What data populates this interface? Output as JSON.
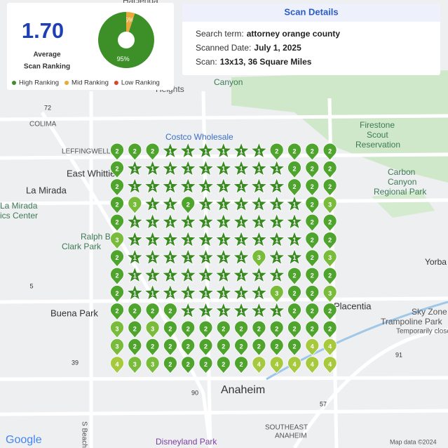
{
  "summary": {
    "average": "1.70",
    "average_label": [
      "Average",
      "Scan Ranking"
    ],
    "pie": {
      "type": "pie",
      "values": [
        5,
        95
      ],
      "value_labels": [
        "5%",
        "95%"
      ],
      "colors": [
        "#e8a93a",
        "#3d8f28"
      ]
    },
    "legend": [
      {
        "name": "High Ranking",
        "color": "#3d8f28"
      },
      {
        "name": "Mid Ranking",
        "color": "#e8a93a"
      },
      {
        "name": "Low Ranking",
        "color": "#d9442f"
      }
    ]
  },
  "details": {
    "title": "Scan Details",
    "rows": [
      {
        "label": "Search term:",
        "value": "attorney orange county"
      },
      {
        "label": "Scanned Date:",
        "value": "July 1, 2025"
      },
      {
        "label": "Scan:",
        "value": "13x13, 36 Square Miles"
      }
    ]
  },
  "map": {
    "labels": [
      "Hacienda",
      "Heights",
      "Canyon",
      "COLIMA",
      "LEFFINGWELL",
      "East Whittier",
      "La Mirada",
      "La Mirada",
      "ics Center",
      "Ralph B",
      "Clark Park",
      "Firestone",
      "Scout",
      "Reservation",
      "Carbon",
      "Canyon",
      "Regional Park",
      "Yorba",
      "Buena Park",
      "Placentia",
      "Sky Zone",
      "Trampoline Park",
      "Temporarily close",
      "Anaheim",
      "SOUTHEAST",
      "ANAHEIM",
      "Disneyland Park",
      "Costco Wholesale",
      "Map data ©2024",
      "Google",
      "S Beach Blvd",
      "72",
      "5",
      "39",
      "57",
      "91",
      "90"
    ],
    "rank_colors": {
      "1": "#3a8a22",
      "2": "#4ea42c",
      "3": "#79bb3a",
      "4": "#a6c93e"
    },
    "grid": {
      "rows": [
        [
          2,
          2,
          2,
          1,
          1,
          1,
          1,
          1,
          1,
          2,
          2,
          2,
          2
        ],
        [
          2,
          1,
          1,
          1,
          1,
          1,
          1,
          1,
          1,
          1,
          2,
          2,
          2
        ],
        [
          2,
          1,
          1,
          1,
          1,
          1,
          1,
          1,
          1,
          1,
          2,
          2,
          2
        ],
        [
          2,
          3,
          1,
          1,
          2,
          1,
          1,
          1,
          1,
          1,
          1,
          2,
          3
        ],
        [
          2,
          1,
          1,
          1,
          1,
          1,
          1,
          1,
          1,
          1,
          1,
          2,
          2
        ],
        [
          3,
          1,
          1,
          1,
          1,
          1,
          1,
          1,
          1,
          1,
          1,
          2,
          2
        ],
        [
          2,
          1,
          1,
          1,
          1,
          1,
          1,
          1,
          3,
          1,
          1,
          2,
          3
        ],
        [
          2,
          1,
          1,
          1,
          1,
          1,
          1,
          1,
          1,
          1,
          2,
          2,
          2
        ],
        [
          2,
          1,
          1,
          1,
          1,
          1,
          1,
          1,
          1,
          3,
          2,
          2,
          3
        ],
        [
          2,
          2,
          2,
          2,
          1,
          1,
          1,
          1,
          1,
          1,
          2,
          2,
          2
        ],
        [
          3,
          2,
          3,
          2,
          2,
          2,
          2,
          2,
          2,
          2,
          2,
          2,
          2
        ],
        [
          3,
          2,
          2,
          2,
          2,
          2,
          2,
          2,
          2,
          2,
          2,
          4,
          4
        ],
        [
          4,
          3,
          3,
          2,
          2,
          2,
          2,
          2,
          4,
          4,
          4,
          4,
          4
        ]
      ]
    }
  }
}
